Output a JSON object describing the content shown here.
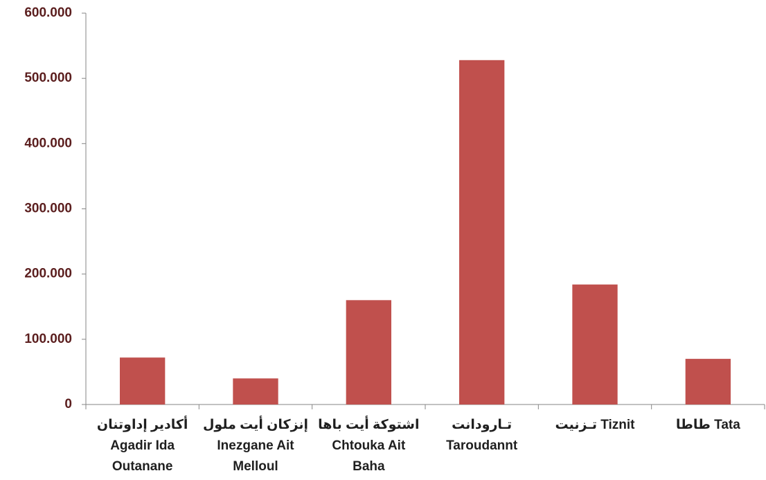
{
  "chart_data": {
    "type": "bar",
    "categories": [
      [
        "أكادير إداوتنان",
        "Agadir Ida",
        "Outanane"
      ],
      [
        "إنزكان أيت ملول",
        "Inezgane Ait",
        "Melloul"
      ],
      [
        "اشتوكة أيت باها",
        "Chtouka Ait",
        "Baha"
      ],
      [
        "تـارودانت",
        "Taroudannt"
      ],
      [
        "تـزنيت  Tiznit"
      ],
      [
        "طاطا  Tata"
      ]
    ],
    "values": [
      72000,
      40000,
      160000,
      528000,
      184000,
      70000
    ],
    "color": "#c0504d",
    "ylim": [
      0,
      600000
    ],
    "yticks": [
      0,
      {
        "value": 100000,
        "label": "100.000"
      },
      {
        "value": 200000,
        "label": "200.000"
      },
      {
        "value": 300000,
        "label": "300.000"
      },
      {
        "value": 400000,
        "label": "400.000"
      },
      {
        "value": 500000,
        "label": "500.000"
      },
      {
        "value": 600000,
        "label": "600.000"
      }
    ],
    "grid": false
  }
}
